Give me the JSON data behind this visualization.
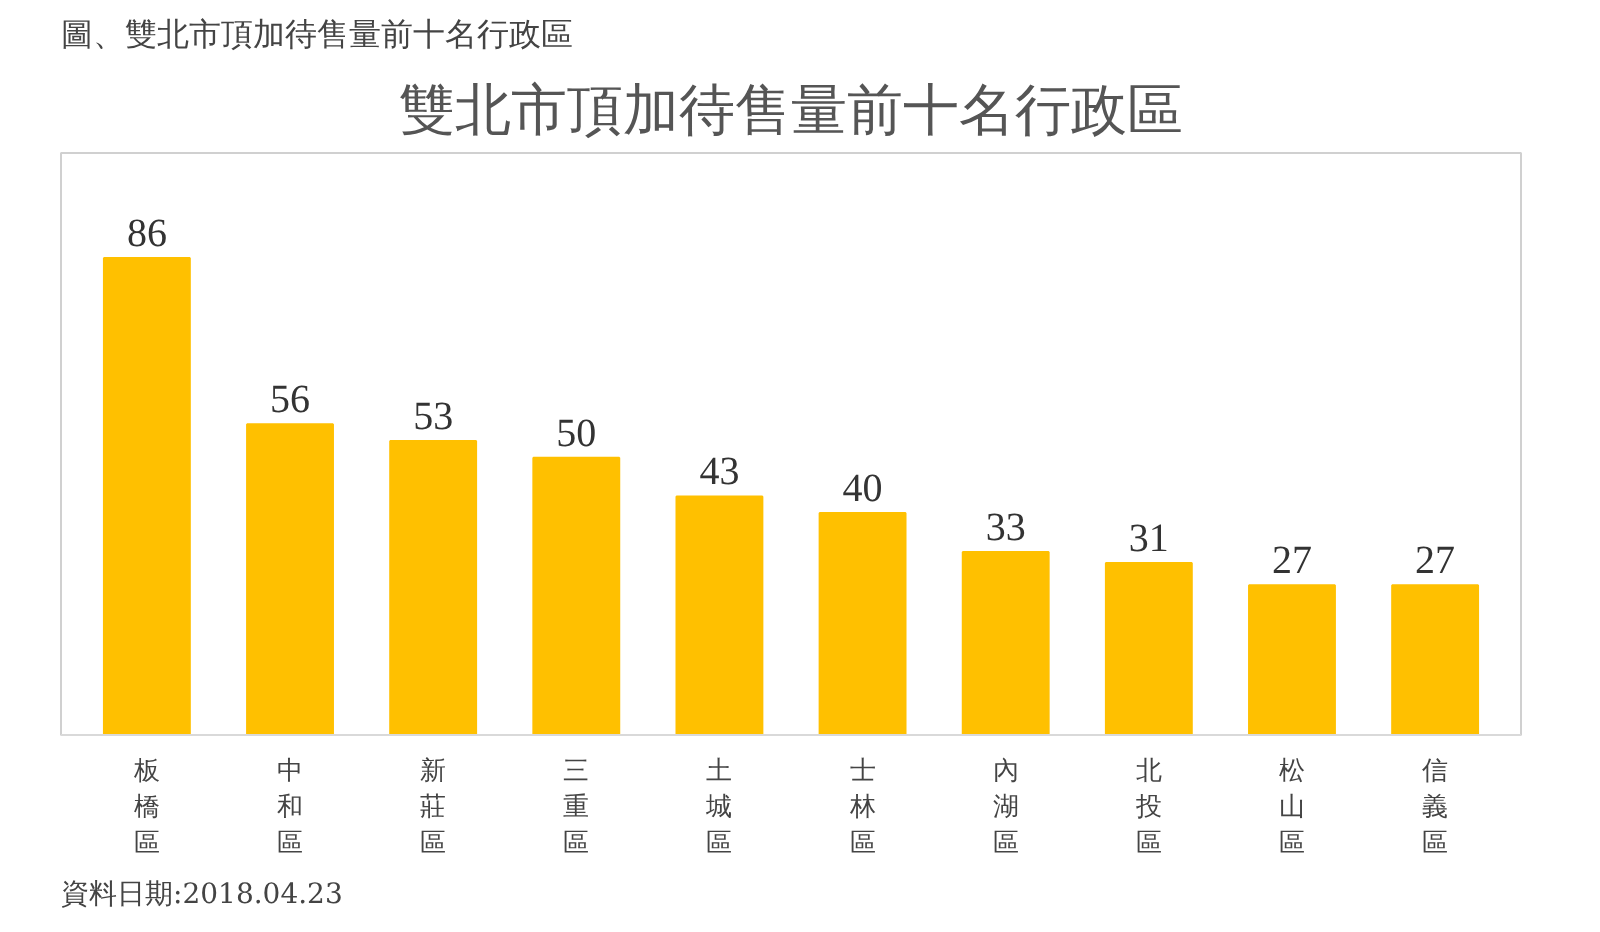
{
  "chart_data": {
    "type": "bar",
    "title": "圖、雙北市頂加待售量前十名行政區",
    "subtitle": "雙北市頂加待售量前十名行政區",
    "categories": [
      "板橋區",
      "中和區",
      "新莊區",
      "三重區",
      "土城區",
      "士林區",
      "內湖區",
      "北投區",
      "松山區",
      "信義區"
    ],
    "values": [
      86,
      56,
      53,
      50,
      43,
      40,
      33,
      31,
      27,
      27
    ],
    "color": "#ffc000",
    "data_labels": true,
    "annotations": [
      "資料日期:2018.04.23"
    ]
  }
}
